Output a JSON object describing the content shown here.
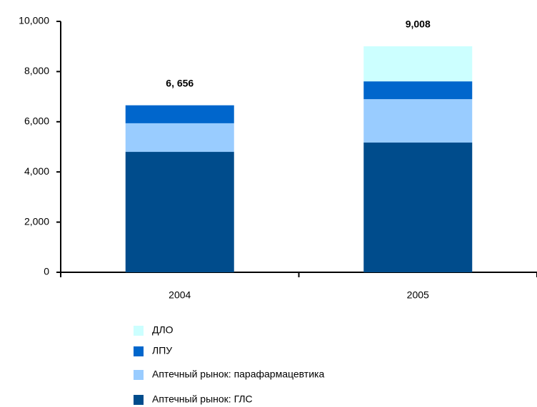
{
  "chart_data": {
    "type": "stacked_bar",
    "categories": [
      "2004",
      "2005"
    ],
    "series": [
      {
        "name": "ДЛО",
        "color": "#ccffff",
        "values": [
          0,
          1398
        ]
      },
      {
        "name": "ЛПУ",
        "color": "#0066cc",
        "values": [
          716,
          710
        ]
      },
      {
        "name": "Аптечный рынок: парафармацевтика",
        "color": "#99ccff",
        "values": [
          1140,
          1730
        ]
      },
      {
        "name": "Аптечный рынок: ГЛС",
        "color": "#004c8c",
        "values": [
          4800,
          5170
        ]
      }
    ],
    "totals": [
      6656,
      9008
    ],
    "total_labels": [
      "6, 656",
      "9,008"
    ],
    "ylim": [
      0,
      10000
    ],
    "yticks": [
      0,
      {
        "value": 2000,
        "label": "2,000"
      },
      {
        "value": 4000,
        "label": "4,000"
      },
      {
        "value": 6000,
        "label": "6,000"
      },
      {
        "value": 8000,
        "label": "8,000"
      },
      {
        "value": 10000,
        "label": "10,000"
      }
    ],
    "legend": "bottom"
  }
}
